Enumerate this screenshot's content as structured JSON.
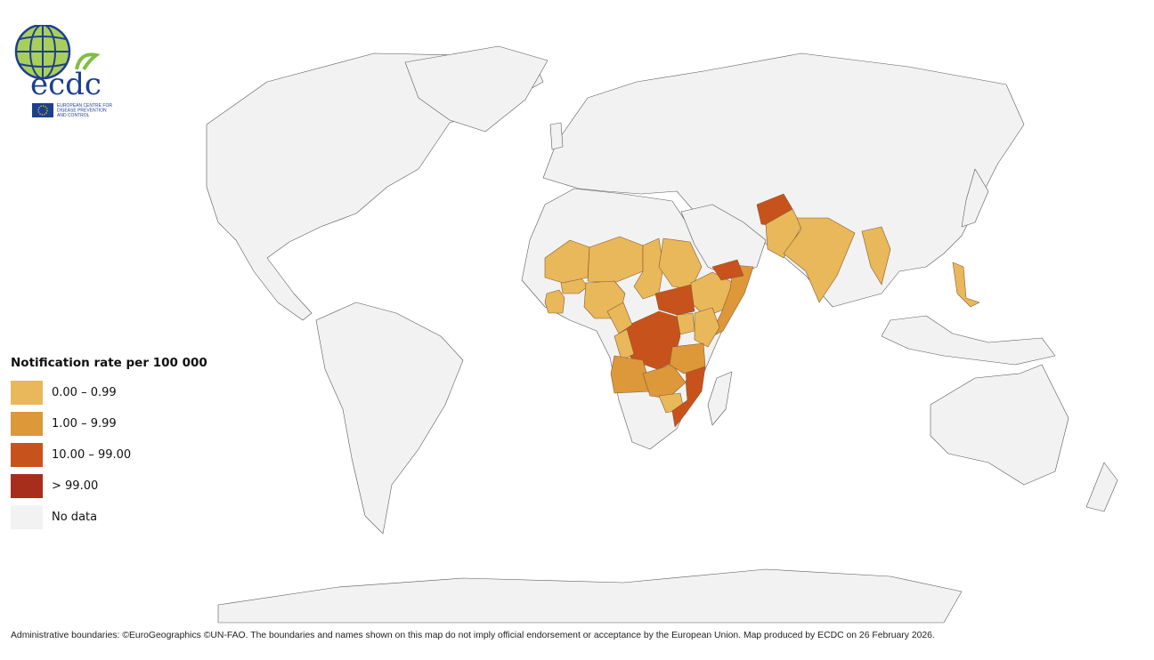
{
  "logo": {
    "wordmark": "ecdc",
    "subtitle_lines": [
      "EUROPEAN CENTRE FOR",
      "DISEASE PREVENTION",
      "AND CONTROL"
    ]
  },
  "legend": {
    "title": "Notification rate per 100 000",
    "classes": [
      {
        "label": "0.00 – 0.99",
        "color": "#e8b85a"
      },
      {
        "label": "1.00 – 9.99",
        "color": "#dd983a"
      },
      {
        "label": "10.00 – 99.00",
        "color": "#c8521c"
      },
      {
        "label": "> 99.00",
        "color": "#a72e1b"
      },
      {
        "label": "No data",
        "color": "#f2f2f2"
      }
    ]
  },
  "colors": {
    "no_data": "#f2f2f2",
    "border": "#5a5a5a"
  },
  "map_regions": [
    {
      "name": "Côte d'Ivoire",
      "class": 0
    },
    {
      "name": "Burkina Faso",
      "class": 0
    },
    {
      "name": "Mali",
      "class": 0
    },
    {
      "name": "Niger",
      "class": 0
    },
    {
      "name": "Nigeria",
      "class": 0
    },
    {
      "name": "Chad",
      "class": 0
    },
    {
      "name": "Sudan",
      "class": 0
    },
    {
      "name": "Ethiopia",
      "class": 0
    },
    {
      "name": "Somalia",
      "class": 1
    },
    {
      "name": "Kenya",
      "class": 0
    },
    {
      "name": "Uganda",
      "class": 0
    },
    {
      "name": "South Sudan",
      "class": 2
    },
    {
      "name": "Democratic Republic of the Congo",
      "class": 2
    },
    {
      "name": "Cameroon",
      "class": 0
    },
    {
      "name": "Congo",
      "class": 0
    },
    {
      "name": "Angola",
      "class": 1
    },
    {
      "name": "Zambia",
      "class": 1
    },
    {
      "name": "Malawi",
      "class": 0
    },
    {
      "name": "Zimbabwe",
      "class": 0
    },
    {
      "name": "Mozambique",
      "class": 2
    },
    {
      "name": "Tanzania",
      "class": 1
    },
    {
      "name": "Yemen",
      "class": 2
    },
    {
      "name": "Afghanistan",
      "class": 2
    },
    {
      "name": "Pakistan",
      "class": 0
    },
    {
      "name": "India",
      "class": 0
    },
    {
      "name": "Myanmar",
      "class": 0
    },
    {
      "name": "Philippines",
      "class": 0
    }
  ],
  "footer": "Administrative boundaries: ©EuroGeographics ©UN-FAO. The boundaries and names shown on this map do not imply official endorsement or acceptance by the European Union. Map produced by ECDC on 26 February 2026."
}
